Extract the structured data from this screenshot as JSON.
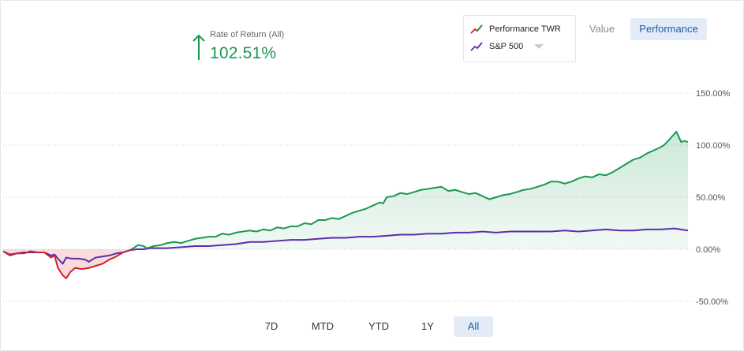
{
  "summary": {
    "label": "Rate of Return (All)",
    "value": "102.51%",
    "direction_icon": "arrow-up-icon",
    "color": "#1a9850"
  },
  "legend": {
    "items": [
      {
        "name": "Performance TWR",
        "icon": "line-swatch-icon",
        "color": "#d0202f"
      },
      {
        "name": "S&P 500",
        "icon": "line-swatch-icon",
        "color": "#5b2dab"
      }
    ],
    "dropdown_icon": "caret-down-icon"
  },
  "view_toggle": {
    "options": [
      "Value",
      "Performance"
    ],
    "selected": "Performance"
  },
  "range_buttons": {
    "options": [
      "7D",
      "MTD",
      "YTD",
      "1Y",
      "All"
    ],
    "selected": "All"
  },
  "chart_data": {
    "type": "line",
    "title": "",
    "xlabel": "",
    "ylabel": "",
    "x_range": [
      0,
      100
    ],
    "ylim": [
      -50,
      150
    ],
    "yticks": [
      -50,
      0,
      50,
      100,
      150
    ],
    "ytick_labels": [
      "-50.00%",
      "0.00%",
      "50.00%",
      "100.00%",
      "150.00%"
    ],
    "grid": true,
    "legend_position": "top-right",
    "positive_color": "#1a9850",
    "negative_color": "#d0202f",
    "series": [
      {
        "name": "Performance TWR",
        "color": "#1a9850",
        "negative_color": "#d0202f",
        "fill": true,
        "points": [
          [
            0,
            -2
          ],
          [
            1,
            -6
          ],
          [
            2,
            -4
          ],
          [
            3,
            -4
          ],
          [
            4,
            -2
          ],
          [
            5,
            -3
          ],
          [
            6,
            -3
          ],
          [
            7,
            -8
          ],
          [
            7.5,
            -6
          ],
          [
            8,
            -18
          ],
          [
            8.7,
            -25
          ],
          [
            9.2,
            -28
          ],
          [
            9.8,
            -22
          ],
          [
            10.5,
            -18
          ],
          [
            11.5,
            -19
          ],
          [
            12.5,
            -18
          ],
          [
            13.5,
            -16
          ],
          [
            14.5,
            -14
          ],
          [
            15.5,
            -10
          ],
          [
            16.5,
            -7
          ],
          [
            17.5,
            -3
          ],
          [
            18.5,
            -1
          ],
          [
            19,
            1
          ],
          [
            19.7,
            4
          ],
          [
            20.5,
            3
          ],
          [
            21,
            1
          ],
          [
            22,
            3
          ],
          [
            23,
            4
          ],
          [
            24,
            6
          ],
          [
            25,
            7
          ],
          [
            26,
            6
          ],
          [
            27,
            8
          ],
          [
            28,
            10
          ],
          [
            29,
            11
          ],
          [
            30,
            12
          ],
          [
            31,
            12
          ],
          [
            32,
            15
          ],
          [
            33,
            14
          ],
          [
            34,
            16
          ],
          [
            35,
            17
          ],
          [
            36,
            18
          ],
          [
            37,
            17
          ],
          [
            38,
            19
          ],
          [
            39,
            18
          ],
          [
            40,
            21
          ],
          [
            41,
            20
          ],
          [
            42,
            22
          ],
          [
            43,
            22
          ],
          [
            44,
            25
          ],
          [
            45,
            24
          ],
          [
            46,
            28
          ],
          [
            47,
            28
          ],
          [
            48,
            30
          ],
          [
            49,
            29
          ],
          [
            50,
            32
          ],
          [
            51,
            35
          ],
          [
            52,
            37
          ],
          [
            53,
            39
          ],
          [
            54,
            42
          ],
          [
            55,
            45
          ],
          [
            55.5,
            44
          ],
          [
            56,
            50
          ],
          [
            57,
            51
          ],
          [
            58,
            54
          ],
          [
            59,
            53
          ],
          [
            60,
            55
          ],
          [
            61,
            57
          ],
          [
            62,
            58
          ],
          [
            63,
            59
          ],
          [
            64,
            60
          ],
          [
            65,
            56
          ],
          [
            66,
            57
          ],
          [
            67,
            55
          ],
          [
            68,
            53
          ],
          [
            69,
            54
          ],
          [
            70,
            51
          ],
          [
            71,
            48
          ],
          [
            72,
            50
          ],
          [
            73,
            52
          ],
          [
            74,
            53
          ],
          [
            75,
            55
          ],
          [
            76,
            57
          ],
          [
            77,
            58
          ],
          [
            78,
            60
          ],
          [
            79,
            62
          ],
          [
            80,
            65
          ],
          [
            81,
            65
          ],
          [
            82,
            63
          ],
          [
            83,
            65
          ],
          [
            84,
            68
          ],
          [
            85,
            70
          ],
          [
            86,
            69
          ],
          [
            87,
            72
          ],
          [
            88,
            71
          ],
          [
            89,
            74
          ],
          [
            90,
            78
          ],
          [
            91,
            82
          ],
          [
            92,
            86
          ],
          [
            93,
            88
          ],
          [
            94,
            92
          ],
          [
            95,
            95
          ],
          [
            96,
            98
          ],
          [
            96.5,
            100
          ],
          [
            97.5,
            107
          ],
          [
            98.3,
            113
          ],
          [
            99,
            103
          ],
          [
            99.5,
            104
          ],
          [
            100,
            103
          ]
        ]
      },
      {
        "name": "S&P 500",
        "color": "#5b2dab",
        "fill": false,
        "points": [
          [
            0,
            -2
          ],
          [
            1,
            -5
          ],
          [
            2,
            -4
          ],
          [
            3,
            -3
          ],
          [
            4,
            -3
          ],
          [
            5,
            -3
          ],
          [
            6,
            -3
          ],
          [
            7,
            -6
          ],
          [
            7.5,
            -5
          ],
          [
            8,
            -9
          ],
          [
            8.7,
            -14
          ],
          [
            9.2,
            -8
          ],
          [
            10,
            -9
          ],
          [
            11,
            -9
          ],
          [
            12,
            -10
          ],
          [
            12.5,
            -12
          ],
          [
            13.5,
            -8
          ],
          [
            14.5,
            -7
          ],
          [
            15.5,
            -6
          ],
          [
            16.5,
            -4
          ],
          [
            17.5,
            -3
          ],
          [
            18.5,
            -1
          ],
          [
            19.5,
            0
          ],
          [
            20.5,
            0
          ],
          [
            21.5,
            1
          ],
          [
            22.5,
            1
          ],
          [
            24,
            1
          ],
          [
            26,
            2
          ],
          [
            28,
            3
          ],
          [
            30,
            3
          ],
          [
            32,
            4
          ],
          [
            34,
            5
          ],
          [
            35,
            6
          ],
          [
            36,
            7
          ],
          [
            38,
            7
          ],
          [
            40,
            8
          ],
          [
            42,
            9
          ],
          [
            44,
            9
          ],
          [
            46,
            10
          ],
          [
            48,
            11
          ],
          [
            50,
            11
          ],
          [
            52,
            12
          ],
          [
            54,
            12
          ],
          [
            56,
            13
          ],
          [
            58,
            14
          ],
          [
            60,
            14
          ],
          [
            62,
            15
          ],
          [
            64,
            15
          ],
          [
            66,
            16
          ],
          [
            68,
            16
          ],
          [
            70,
            17
          ],
          [
            72,
            16
          ],
          [
            74,
            17
          ],
          [
            76,
            17
          ],
          [
            78,
            17
          ],
          [
            80,
            17
          ],
          [
            82,
            18
          ],
          [
            84,
            17
          ],
          [
            86,
            18
          ],
          [
            88,
            19
          ],
          [
            90,
            18
          ],
          [
            92,
            18
          ],
          [
            94,
            19
          ],
          [
            96,
            19
          ],
          [
            98,
            20
          ],
          [
            100,
            18
          ]
        ]
      }
    ]
  }
}
